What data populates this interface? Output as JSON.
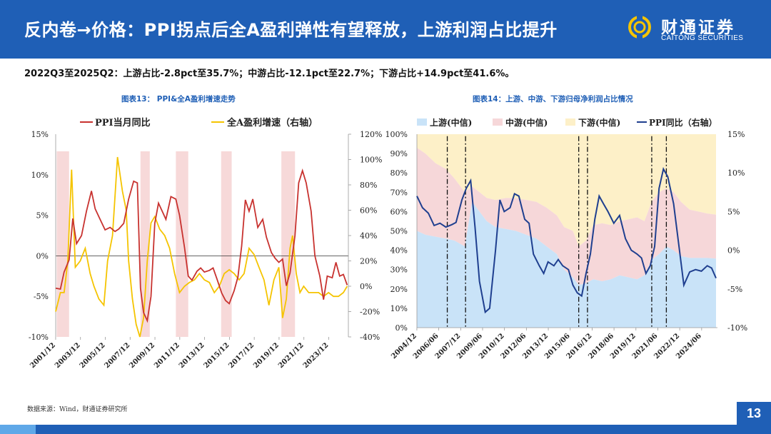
{
  "header": {
    "title": "反内卷→价格：PPI拐点后全A盈利弹性有望释放，上游利润占比提升",
    "logo_cn": "财通证券",
    "logo_en": "CAITONG SECURITIES"
  },
  "summary": "2022Q3至2025Q2：上游占比-2.8pct至35.7%；中游占比-12.1pct至22.7%；下游占比+14.9pct至41.6%。",
  "footer": {
    "source": "数据来源：Wind，财通证券研究所",
    "page_number": "13"
  },
  "colors": {
    "brand_blue": "#1f5fb6",
    "ppi_red": "#c8322f",
    "profit_yellow": "#f5c400",
    "shade_pink": "#f7d9d9",
    "upstream": "#c9e3f8",
    "midstream": "#f6d7d9",
    "downstream": "#fdf0c8",
    "ppi_navy": "#1f3f8f"
  },
  "chart_data": [
    {
      "type": "line",
      "title": "图表13： PPI&全A盈利增速走势",
      "x_tick_labels": [
        "2001/12",
        "2003/12",
        "2005/12",
        "2007/12",
        "2009/12",
        "2011/12",
        "2013/12",
        "2015/12",
        "2017/12",
        "2019/12",
        "2021/12",
        "2023/12"
      ],
      "x_range": [
        2001.92,
        2025.5
      ],
      "y_left": {
        "ticks": [
          "15%",
          "10%",
          "5%",
          "0%",
          "-5%",
          "-10%"
        ],
        "range": [
          -10,
          15
        ]
      },
      "y_right": {
        "ticks": [
          "120%",
          "100%",
          "80%",
          "60%",
          "40%",
          "20%",
          "0%",
          "-20%",
          "-40%"
        ],
        "range": [
          -40,
          120
        ]
      },
      "legend": [
        "PPI当月同比",
        "全A盈利增速（右轴）"
      ],
      "legend_position": "top",
      "shaded_periods": [
        [
          2002.0,
          2003.0
        ],
        [
          2008.75,
          2009.5
        ],
        [
          2011.6,
          2012.6
        ],
        [
          2015.25,
          2016.1
        ],
        [
          2020.1,
          2021.2
        ]
      ],
      "series": [
        {
          "name": "PPI当月同比",
          "axis": "left",
          "x": [
            2001.92,
            2002.3,
            2002.6,
            2003.0,
            2003.3,
            2003.6,
            2004.0,
            2004.4,
            2004.8,
            2005.1,
            2005.5,
            2005.9,
            2006.3,
            2006.7,
            2007.0,
            2007.4,
            2007.8,
            2008.2,
            2008.5,
            2008.75,
            2009.0,
            2009.3,
            2009.6,
            2009.9,
            2010.2,
            2010.5,
            2010.8,
            2011.2,
            2011.6,
            2011.9,
            2012.3,
            2012.6,
            2012.9,
            2013.3,
            2013.6,
            2013.9,
            2014.3,
            2014.6,
            2014.9,
            2015.3,
            2015.6,
            2015.9,
            2016.3,
            2016.6,
            2016.9,
            2017.2,
            2017.5,
            2017.8,
            2018.2,
            2018.6,
            2018.9,
            2019.3,
            2019.6,
            2019.9,
            2020.2,
            2020.5,
            2020.8,
            2021.2,
            2021.5,
            2021.8,
            2022.1,
            2022.5,
            2022.8,
            2023.2,
            2023.5,
            2023.8,
            2024.2,
            2024.5,
            2024.8,
            2025.1,
            2025.4
          ],
          "y": [
            -4.0,
            -4.1,
            -2.0,
            -0.5,
            4.6,
            1.5,
            2.5,
            5.5,
            8.0,
            5.8,
            4.5,
            3.2,
            3.5,
            3.0,
            3.3,
            4.0,
            7.0,
            9.2,
            9.0,
            -4.0,
            -7.0,
            -8.0,
            -5.0,
            4.0,
            6.5,
            5.5,
            4.5,
            7.3,
            7.0,
            5.0,
            1.0,
            -2.5,
            -3.0,
            -1.9,
            -1.5,
            -2.0,
            -1.8,
            -1.5,
            -2.8,
            -4.6,
            -5.5,
            -5.9,
            -4.3,
            -2.6,
            1.2,
            6.9,
            5.5,
            7.0,
            3.5,
            4.5,
            2.3,
            0.4,
            -0.3,
            -0.8,
            -0.4,
            -3.7,
            -2.1,
            2.5,
            9.0,
            10.5,
            9.0,
            5.5,
            0.0,
            -2.5,
            -5.4,
            -2.5,
            -2.7,
            -0.8,
            -2.5,
            -2.3,
            -3.6
          ]
        },
        {
          "name": "全A盈利增速（右轴）",
          "axis": "right",
          "x": [
            2001.92,
            2002.3,
            2002.6,
            2002.9,
            2003.2,
            2003.5,
            2003.9,
            2004.3,
            2004.7,
            2005.0,
            2005.4,
            2005.8,
            2006.1,
            2006.5,
            2006.9,
            2007.3,
            2007.6,
            2007.8,
            2008.1,
            2008.4,
            2008.7,
            2009.0,
            2009.3,
            2009.6,
            2009.9,
            2010.3,
            2010.7,
            2011.1,
            2011.5,
            2011.9,
            2012.3,
            2012.7,
            2013.1,
            2013.5,
            2013.9,
            2014.3,
            2014.7,
            2015.1,
            2015.5,
            2015.9,
            2016.3,
            2016.7,
            2017.1,
            2017.5,
            2017.9,
            2018.3,
            2018.7,
            2019.1,
            2019.5,
            2019.9,
            2020.2,
            2020.5,
            2020.8,
            2021.0,
            2021.3,
            2021.6,
            2021.9,
            2022.3,
            2022.7,
            2023.1,
            2023.5,
            2023.9,
            2024.3,
            2024.7,
            2025.1,
            2025.4
          ],
          "y": [
            -20,
            -5,
            -5,
            20,
            92,
            15,
            20,
            30,
            10,
            0,
            -10,
            -15,
            20,
            40,
            102,
            75,
            60,
            20,
            -10,
            -30,
            -40,
            -25,
            20,
            50,
            55,
            45,
            40,
            30,
            10,
            -5,
            0,
            3,
            5,
            10,
            5,
            3,
            -5,
            0,
            10,
            13,
            10,
            5,
            10,
            30,
            25,
            15,
            5,
            -15,
            5,
            15,
            -25,
            -10,
            30,
            40,
            10,
            -5,
            0,
            -5,
            -5,
            -5,
            -8,
            -5,
            -8,
            -8,
            -5,
            0
          ]
        }
      ]
    },
    {
      "type": "area",
      "title": "图表14：上游、中游、下游归母净利润占比情况",
      "x_tick_labels": [
        "2004/12",
        "2006/06",
        "2007/12",
        "2009/06",
        "2010/12",
        "2012/06",
        "2013/12",
        "2015/06",
        "2016/12",
        "2018/06",
        "2019/12",
        "2021/06",
        "2022/12",
        "2024/06"
      ],
      "x_range": [
        2004.92,
        2025.5
      ],
      "y_left": {
        "ticks": [
          "100%",
          "90%",
          "80%",
          "70%",
          "60%",
          "50%",
          "40%",
          "30%",
          "20%",
          "10%",
          "0%"
        ],
        "range": [
          0,
          100
        ]
      },
      "y_right": {
        "ticks": [
          "15%",
          "10%",
          "5%",
          "0%",
          "-5%",
          "-10%"
        ],
        "range": [
          -10,
          15
        ]
      },
      "legend": [
        "上游(中信)",
        "中游(中信)",
        "下游(中信)",
        "PPI同比（右轴）"
      ],
      "legend_position": "top",
      "vertical_markers": [
        2007.0,
        2008.25,
        2016.0,
        2016.6,
        2021.0,
        2022.0
      ],
      "series": [
        {
          "name": "上游(中信)",
          "x": [
            2004.92,
            2005.5,
            2006.2,
            2006.9,
            2007.5,
            2008.2,
            2008.7,
            2009.2,
            2009.7,
            2010.3,
            2011.0,
            2011.7,
            2012.4,
            2013.1,
            2013.8,
            2014.5,
            2015.0,
            2015.6,
            2016.0,
            2016.5,
            2017.0,
            2017.6,
            2018.2,
            2018.8,
            2019.4,
            2020.0,
            2020.5,
            2021.0,
            2021.5,
            2022.0,
            2022.5,
            2023.0,
            2023.6,
            2024.2,
            2024.8,
            2025.4
          ],
          "y": [
            50,
            48,
            47,
            46,
            45,
            42,
            65,
            60,
            55,
            52,
            51,
            50,
            48,
            46,
            42,
            38,
            30,
            26,
            22,
            23,
            25,
            24,
            25,
            27,
            26,
            25,
            27,
            35,
            38,
            42,
            40,
            37,
            36,
            36,
            36,
            35.7
          ]
        },
        {
          "name": "中游(中信)",
          "x": [
            2004.92,
            2005.5,
            2006.2,
            2006.9,
            2007.5,
            2008.2,
            2008.7,
            2009.2,
            2009.7,
            2010.3,
            2011.0,
            2011.7,
            2012.4,
            2013.1,
            2013.8,
            2014.5,
            2015.0,
            2015.6,
            2016.0,
            2016.5,
            2017.0,
            2017.6,
            2018.2,
            2018.8,
            2019.4,
            2020.0,
            2020.5,
            2021.0,
            2021.5,
            2022.0,
            2022.5,
            2023.0,
            2023.6,
            2024.2,
            2024.8,
            2025.4
          ],
          "y": [
            43,
            42,
            38,
            36,
            32,
            28,
            8,
            10,
            12,
            14,
            16,
            17,
            18,
            19,
            20,
            20,
            22,
            24,
            20,
            22,
            28,
            30,
            28,
            28,
            30,
            32,
            28,
            30,
            32,
            30,
            30,
            28,
            25,
            24,
            23,
            22.7
          ]
        },
        {
          "name": "下游(中信)",
          "x": [
            2004.92,
            2005.5,
            2006.2,
            2006.9,
            2007.5,
            2008.2,
            2008.7,
            2009.2,
            2009.7,
            2010.3,
            2011.0,
            2011.7,
            2012.4,
            2013.1,
            2013.8,
            2014.5,
            2015.0,
            2015.6,
            2016.0,
            2016.5,
            2017.0,
            2017.6,
            2018.2,
            2018.8,
            2019.4,
            2020.0,
            2020.5,
            2021.0,
            2021.5,
            2022.0,
            2022.5,
            2023.0,
            2023.6,
            2024.2,
            2024.8,
            2025.4
          ],
          "y": [
            7,
            10,
            15,
            18,
            23,
            30,
            27,
            30,
            33,
            34,
            33,
            33,
            34,
            35,
            38,
            42,
            48,
            50,
            58,
            55,
            47,
            46,
            47,
            45,
            44,
            43,
            45,
            35,
            30,
            28,
            30,
            35,
            39,
            40,
            41,
            41.6
          ]
        },
        {
          "name": "PPI同比（右轴）",
          "axis": "right",
          "x": [
            2004.92,
            2005.3,
            2005.7,
            2006.1,
            2006.5,
            2006.9,
            2007.3,
            2007.6,
            2008.0,
            2008.3,
            2008.6,
            2008.9,
            2009.2,
            2009.6,
            2009.9,
            2010.3,
            2010.6,
            2010.9,
            2011.3,
            2011.6,
            2011.9,
            2012.3,
            2012.6,
            2012.9,
            2013.3,
            2013.6,
            2013.9,
            2014.3,
            2014.6,
            2014.9,
            2015.3,
            2015.6,
            2015.9,
            2016.2,
            2016.5,
            2016.8,
            2017.1,
            2017.4,
            2017.7,
            2018.0,
            2018.4,
            2018.8,
            2019.2,
            2019.6,
            2020.0,
            2020.3,
            2020.6,
            2020.9,
            2021.2,
            2021.5,
            2021.8,
            2022.1,
            2022.5,
            2022.9,
            2023.2,
            2023.6,
            2024.0,
            2024.4,
            2024.8,
            2025.1,
            2025.4
          ],
          "y": [
            7.0,
            5.5,
            4.8,
            3.2,
            3.5,
            3.0,
            3.3,
            3.6,
            6.5,
            8.0,
            9.0,
            3.0,
            -4.0,
            -8.0,
            -7.5,
            0.0,
            6.5,
            5.0,
            5.5,
            7.3,
            7.0,
            4.0,
            3.5,
            -0.5,
            -2.0,
            -3.0,
            -1.5,
            -2.0,
            -1.2,
            -2.0,
            -2.5,
            -4.5,
            -5.5,
            -5.9,
            -3.0,
            -0.5,
            4.0,
            7.0,
            6.0,
            5.0,
            3.5,
            4.5,
            1.5,
            0.0,
            -0.5,
            -1.0,
            -3.0,
            -2.0,
            0.5,
            8.0,
            10.5,
            9.5,
            6.0,
            0.0,
            -4.5,
            -2.8,
            -2.5,
            -2.7,
            -2.0,
            -2.3,
            -3.6
          ]
        }
      ]
    }
  ]
}
